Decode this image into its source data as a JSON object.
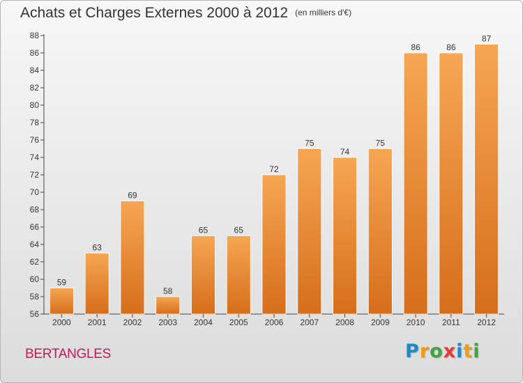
{
  "title": "Achats et Charges Externes 2000 à 2012",
  "subtitle": "(en milliers d'€)",
  "commune": "BERTANGLES",
  "logo": {
    "text": "Proxiti",
    "letters": [
      {
        "ch": "P",
        "color": "#1e88c8"
      },
      {
        "ch": "r",
        "color": "#f39c12"
      },
      {
        "ch": "o",
        "color": "#43a047"
      },
      {
        "ch": "x",
        "color": "#e53935"
      },
      {
        "ch": "i",
        "color": "#1e88c8"
      },
      {
        "ch": "t",
        "color": "#f39c12"
      },
      {
        "ch": "i",
        "color": "#43a047"
      }
    ]
  },
  "colors": {
    "bar_light": "#f6a653",
    "bar_dark": "#d66e1b",
    "axis": "#444444",
    "text": "#333333"
  },
  "chart_data": {
    "type": "bar",
    "categories": [
      "2000",
      "2001",
      "2002",
      "2003",
      "2004",
      "2005",
      "2006",
      "2007",
      "2008",
      "2009",
      "2010",
      "2011",
      "2012"
    ],
    "values": [
      59,
      63,
      69,
      58,
      65,
      65,
      72,
      75,
      74,
      75,
      86,
      86,
      87
    ],
    "title": "Achats et Charges Externes 2000 à 2012",
    "subtitle": "(en milliers d'€)",
    "xlabel": "",
    "ylabel": "",
    "ylim": [
      56,
      88
    ],
    "yticks": [
      56,
      58,
      60,
      62,
      64,
      66,
      68,
      70,
      72,
      74,
      76,
      78,
      80,
      82,
      84,
      86,
      88
    ],
    "grid": false,
    "data_labels": true
  }
}
